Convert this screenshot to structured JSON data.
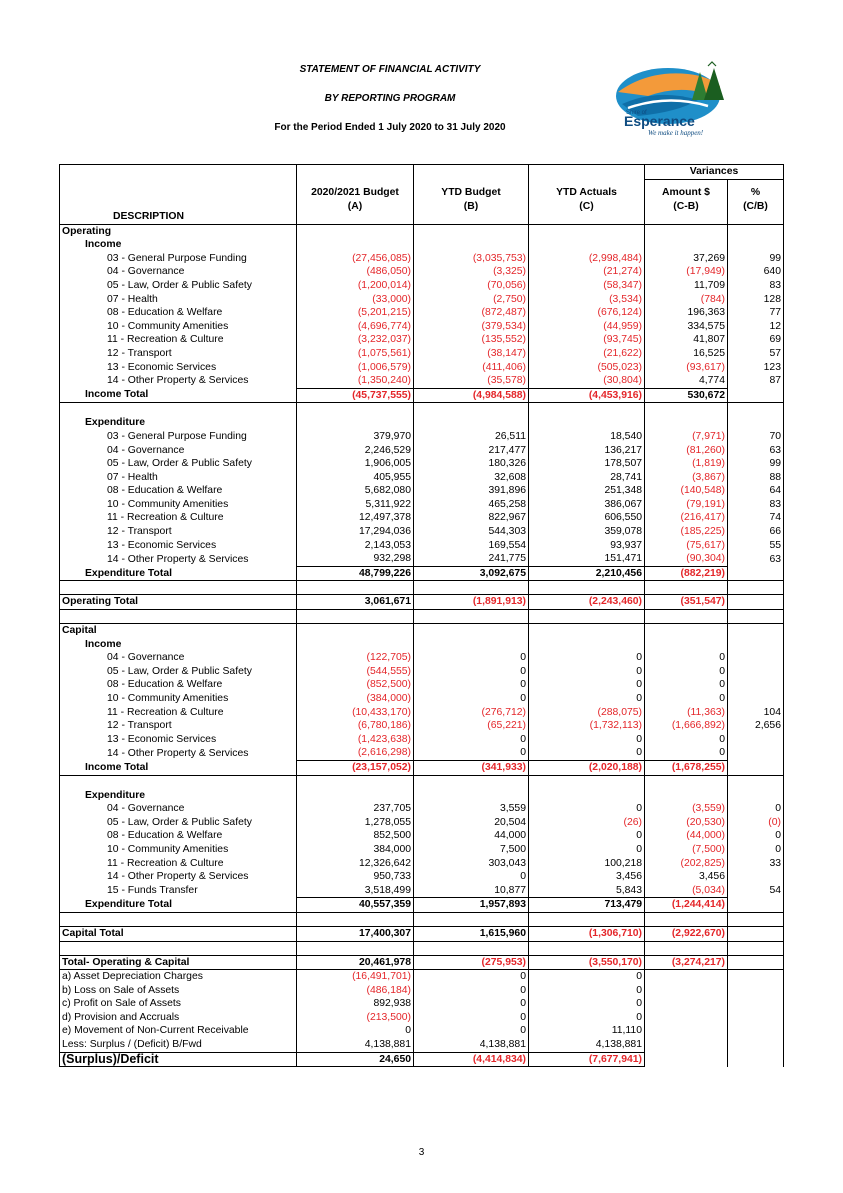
{
  "header": {
    "title": "STATEMENT OF FINANCIAL ACTIVITY",
    "subtitle": "BY REPORTING PROGRAM",
    "period": "For the Period Ended 1 July 2020 to 31 July 2020",
    "logo_text_top": "Shire of",
    "logo_text_main": "Esperance",
    "logo_tagline": "We make it happen!"
  },
  "columns": {
    "description": "DESCRIPTION",
    "budget": "2020/2021 Budget",
    "budget_sub": "(A)",
    "ytd_budget": "YTD Budget",
    "ytd_budget_sub": "(B)",
    "ytd_actuals": "YTD Actuals",
    "ytd_actuals_sub": "(C)",
    "variances": "Variances",
    "amount": "Amount $",
    "amount_sub": "(C-B)",
    "pct": "%",
    "pct_sub": "(C/B)"
  },
  "rows": [
    {
      "type": "section",
      "desc": "Operating"
    },
    {
      "type": "sub",
      "desc": "Income"
    },
    {
      "type": "item",
      "desc": "03 - General Purpose Funding",
      "a": "(27,456,085)",
      "b": "(3,035,753)",
      "c": "(2,998,484)",
      "d": "37,269",
      "e": "99"
    },
    {
      "type": "item",
      "desc": "04 - Governance",
      "a": "(486,050)",
      "b": "(3,325)",
      "c": "(21,274)",
      "d": "(17,949)",
      "e": "640"
    },
    {
      "type": "item",
      "desc": "05 - Law, Order & Public Safety",
      "a": "(1,200,014)",
      "b": "(70,056)",
      "c": "(58,347)",
      "d": "11,709",
      "e": "83"
    },
    {
      "type": "item",
      "desc": "07 - Health",
      "a": "(33,000)",
      "b": "(2,750)",
      "c": "(3,534)",
      "d": "(784)",
      "e": "128"
    },
    {
      "type": "item",
      "desc": "08 - Education & Welfare",
      "a": "(5,201,215)",
      "b": "(872,487)",
      "c": "(676,124)",
      "d": "196,363",
      "e": "77"
    },
    {
      "type": "item",
      "desc": "10 - Community Amenities",
      "a": "(4,696,774)",
      "b": "(379,534)",
      "c": "(44,959)",
      "d": "334,575",
      "e": "12"
    },
    {
      "type": "item",
      "desc": "11 - Recreation & Culture",
      "a": "(3,232,037)",
      "b": "(135,552)",
      "c": "(93,745)",
      "d": "41,807",
      "e": "69"
    },
    {
      "type": "item",
      "desc": "12 - Transport",
      "a": "(1,075,561)",
      "b": "(38,147)",
      "c": "(21,622)",
      "d": "16,525",
      "e": "57"
    },
    {
      "type": "item",
      "desc": "13 - Economic Services",
      "a": "(1,006,579)",
      "b": "(411,406)",
      "c": "(505,023)",
      "d": "(93,617)",
      "e": "123"
    },
    {
      "type": "item",
      "desc": "14 - Other Property & Services",
      "a": "(1,350,240)",
      "b": "(35,578)",
      "c": "(30,804)",
      "d": "4,774",
      "e": "87"
    },
    {
      "type": "total",
      "desc": "Income Total",
      "a": "(45,737,555)",
      "b": "(4,984,588)",
      "c": "(4,453,916)",
      "d": "530,672",
      "e": ""
    },
    {
      "type": "gap"
    },
    {
      "type": "sub",
      "desc": "Expenditure"
    },
    {
      "type": "item",
      "desc": "03 - General Purpose Funding",
      "a": "379,970",
      "b": "26,511",
      "c": "18,540",
      "d": "(7,971)",
      "e": "70"
    },
    {
      "type": "item",
      "desc": "04 - Governance",
      "a": "2,246,529",
      "b": "217,477",
      "c": "136,217",
      "d": "(81,260)",
      "e": "63"
    },
    {
      "type": "item",
      "desc": "05 - Law, Order & Public Safety",
      "a": "1,906,005",
      "b": "180,326",
      "c": "178,507",
      "d": "(1,819)",
      "e": "99"
    },
    {
      "type": "item",
      "desc": "07 - Health",
      "a": "405,955",
      "b": "32,608",
      "c": "28,741",
      "d": "(3,867)",
      "e": "88"
    },
    {
      "type": "item",
      "desc": "08 - Education & Welfare",
      "a": "5,682,080",
      "b": "391,896",
      "c": "251,348",
      "d": "(140,548)",
      "e": "64"
    },
    {
      "type": "item",
      "desc": "10 - Community Amenities",
      "a": "5,311,922",
      "b": "465,258",
      "c": "386,067",
      "d": "(79,191)",
      "e": "83"
    },
    {
      "type": "item",
      "desc": "11 - Recreation & Culture",
      "a": "12,497,378",
      "b": "822,967",
      "c": "606,550",
      "d": "(216,417)",
      "e": "74"
    },
    {
      "type": "item",
      "desc": "12 - Transport",
      "a": "17,294,036",
      "b": "544,303",
      "c": "359,078",
      "d": "(185,225)",
      "e": "66"
    },
    {
      "type": "item",
      "desc": "13 - Economic Services",
      "a": "2,143,053",
      "b": "169,554",
      "c": "93,937",
      "d": "(75,617)",
      "e": "55"
    },
    {
      "type": "item",
      "desc": "14 - Other Property & Services",
      "a": "932,298",
      "b": "241,775",
      "c": "151,471",
      "d": "(90,304)",
      "e": "63"
    },
    {
      "type": "total",
      "desc": "Expenditure Total",
      "a": "48,799,226",
      "b": "3,092,675",
      "c": "2,210,456",
      "d": "(882,219)",
      "e": ""
    },
    {
      "type": "gap"
    },
    {
      "type": "grand",
      "desc": "Operating Total",
      "a": "3,061,671",
      "b": "(1,891,913)",
      "c": "(2,243,460)",
      "d": "(351,547)",
      "e": ""
    },
    {
      "type": "gap"
    },
    {
      "type": "section",
      "desc": "Capital"
    },
    {
      "type": "sub",
      "desc": "Income"
    },
    {
      "type": "item",
      "desc": "04 - Governance",
      "a": "(122,705)",
      "b": "0",
      "c": "0",
      "d": "0",
      "e": ""
    },
    {
      "type": "item",
      "desc": "05 - Law, Order & Public Safety",
      "a": "(544,555)",
      "b": "0",
      "c": "0",
      "d": "0",
      "e": ""
    },
    {
      "type": "item",
      "desc": "08 - Education & Welfare",
      "a": "(852,500)",
      "b": "0",
      "c": "0",
      "d": "0",
      "e": ""
    },
    {
      "type": "item",
      "desc": "10 - Community Amenities",
      "a": "(384,000)",
      "b": "0",
      "c": "0",
      "d": "0",
      "e": ""
    },
    {
      "type": "item",
      "desc": "11 - Recreation & Culture",
      "a": "(10,433,170)",
      "b": "(276,712)",
      "c": "(288,075)",
      "d": "(11,363)",
      "e": "104"
    },
    {
      "type": "item",
      "desc": "12 - Transport",
      "a": "(6,780,186)",
      "b": "(65,221)",
      "c": "(1,732,113)",
      "d": "(1,666,892)",
      "e": "2,656"
    },
    {
      "type": "item",
      "desc": "13 - Economic Services",
      "a": "(1,423,638)",
      "b": "0",
      "c": "0",
      "d": "0",
      "e": ""
    },
    {
      "type": "item",
      "desc": "14 - Other Property & Services",
      "a": "(2,616,298)",
      "b": "0",
      "c": "0",
      "d": "0",
      "e": ""
    },
    {
      "type": "total",
      "desc": "Income Total",
      "a": "(23,157,052)",
      "b": "(341,933)",
      "c": "(2,020,188)",
      "d": "(1,678,255)",
      "e": ""
    },
    {
      "type": "gap"
    },
    {
      "type": "sub",
      "desc": "Expenditure"
    },
    {
      "type": "item",
      "desc": "04 - Governance",
      "a": "237,705",
      "b": "3,559",
      "c": "0",
      "d": "(3,559)",
      "e": "0"
    },
    {
      "type": "item",
      "desc": "05 - Law, Order & Public Safety",
      "a": "1,278,055",
      "b": "20,504",
      "c": "(26)",
      "d": "(20,530)",
      "e": "(0)"
    },
    {
      "type": "item",
      "desc": "08 - Education & Welfare",
      "a": "852,500",
      "b": "44,000",
      "c": "0",
      "d": "(44,000)",
      "e": "0"
    },
    {
      "type": "item",
      "desc": "10 - Community Amenities",
      "a": "384,000",
      "b": "7,500",
      "c": "0",
      "d": "(7,500)",
      "e": "0"
    },
    {
      "type": "item",
      "desc": "11 - Recreation & Culture",
      "a": "12,326,642",
      "b": "303,043",
      "c": "100,218",
      "d": "(202,825)",
      "e": "33"
    },
    {
      "type": "item",
      "desc": "14 - Other Property & Services",
      "a": "950,733",
      "b": "0",
      "c": "3,456",
      "d": "3,456",
      "e": ""
    },
    {
      "type": "item",
      "desc": "15 - Funds Transfer",
      "a": "3,518,499",
      "b": "10,877",
      "c": "5,843",
      "d": "(5,034)",
      "e": "54"
    },
    {
      "type": "total",
      "desc": "Expenditure Total",
      "a": "40,557,359",
      "b": "1,957,893",
      "c": "713,479",
      "d": "(1,244,414)",
      "e": ""
    },
    {
      "type": "gap"
    },
    {
      "type": "grand",
      "desc": "Capital Total",
      "a": "17,400,307",
      "b": "1,615,960",
      "c": "(1,306,710)",
      "d": "(2,922,670)",
      "e": ""
    },
    {
      "type": "gap"
    },
    {
      "type": "grand",
      "desc": "Total- Operating & Capital",
      "a": "20,461,978",
      "b": "(275,953)",
      "c": "(3,550,170)",
      "d": "(3,274,217)",
      "e": ""
    },
    {
      "type": "adj",
      "desc": "a) Asset Depreciation Charges",
      "a": "(16,491,701)",
      "b": "0",
      "c": "0",
      "d": "",
      "e": ""
    },
    {
      "type": "adj",
      "desc": "b) Loss on Sale of Assets",
      "a": "(486,184)",
      "b": "0",
      "c": "0",
      "d": "",
      "e": ""
    },
    {
      "type": "adj",
      "desc": "c) Profit on Sale of Assets",
      "a": "892,938",
      "b": "0",
      "c": "0",
      "d": "",
      "e": ""
    },
    {
      "type": "adj",
      "desc": "d) Provision and Accruals",
      "a": "(213,500)",
      "b": "0",
      "c": "0",
      "d": "",
      "e": ""
    },
    {
      "type": "adj",
      "desc": "e) Movement of Non-Current Receivable",
      "a": "0",
      "b": "0",
      "c": "11,110",
      "d": "",
      "e": ""
    },
    {
      "type": "adj",
      "desc": "Less: Surplus / (Deficit) B/Fwd",
      "a": "4,138,881",
      "b": "4,138,881",
      "c": "4,138,881",
      "d": "",
      "e": ""
    },
    {
      "type": "surplus",
      "desc": "(Surplus)/Deficit",
      "a": "24,650",
      "b": "(4,414,834)",
      "c": "(7,677,941)",
      "d": "",
      "e": ""
    }
  ],
  "page_number": "3",
  "colors": {
    "negative": "#e4262a",
    "text": "#000000"
  }
}
